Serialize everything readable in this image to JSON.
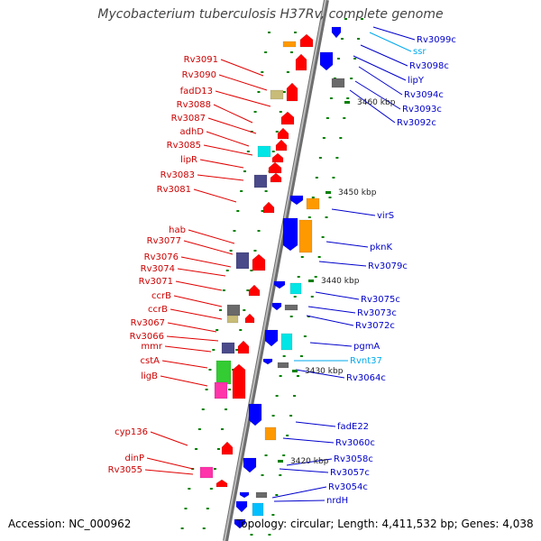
{
  "title": "Mycobacterium tuberculosis H37Rv, complete genome",
  "footer": {
    "accession": "Accession: NC_000962",
    "topology": "Topology: circular; Length: 4,411,532 bp; Genes: 4,038"
  },
  "colors": {
    "forward_gene": "#ff0000",
    "reverse_gene": "#0000ff",
    "rna_gene": "#00bfff",
    "backbone": "#8a8a8a",
    "tick": "#008000",
    "feature_orange": "#ff9900",
    "feature_cyan": "#00e5e5",
    "feature_olive": "#c8bc78",
    "feature_navy": "#4a4a8a",
    "feature_gray": "#6a6a6a",
    "feature_green": "#33cc33",
    "feature_magenta": "#ff33aa"
  },
  "scale_ticks": [
    "3460 kbp",
    "3450 kbp",
    "3440 kbp",
    "3430 kbp",
    "3420 kbp"
  ],
  "left_labels": [
    "Rv3091",
    "Rv3090",
    "fadD13",
    "Rv3088",
    "Rv3087",
    "adhD",
    "Rv3085",
    "lipR",
    "Rv3083",
    "Rv3081",
    "hab",
    "Rv3077",
    "Rv3076",
    "Rv3074",
    "Rv3071",
    "ccrB",
    "ccrB",
    "Rv3067",
    "Rv3066",
    "mmr",
    "cstA",
    "ligB",
    "cyp136",
    "dinP",
    "Rv3055"
  ],
  "right_labels": [
    "Rv3099c",
    "ssr",
    "Rv3098c",
    "lipY",
    "Rv3094c",
    "Rv3093c",
    "Rv3092c",
    "virS",
    "pknK",
    "Rv3079c",
    "Rv3075c",
    "Rv3073c",
    "Rv3072c",
    "pgmA",
    "Rvnt37",
    "Rv3064c",
    "fadE22",
    "Rv3060c",
    "Rv3058c",
    "Rv3057c",
    "Rv3054c",
    "nrdH"
  ],
  "right_label_types": [
    "gene",
    "rna",
    "gene",
    "gene",
    "gene",
    "gene",
    "gene",
    "gene",
    "gene",
    "gene",
    "gene",
    "gene",
    "gene",
    "gene",
    "rna",
    "gene",
    "gene",
    "gene",
    "gene",
    "gene",
    "gene",
    "gene"
  ]
}
